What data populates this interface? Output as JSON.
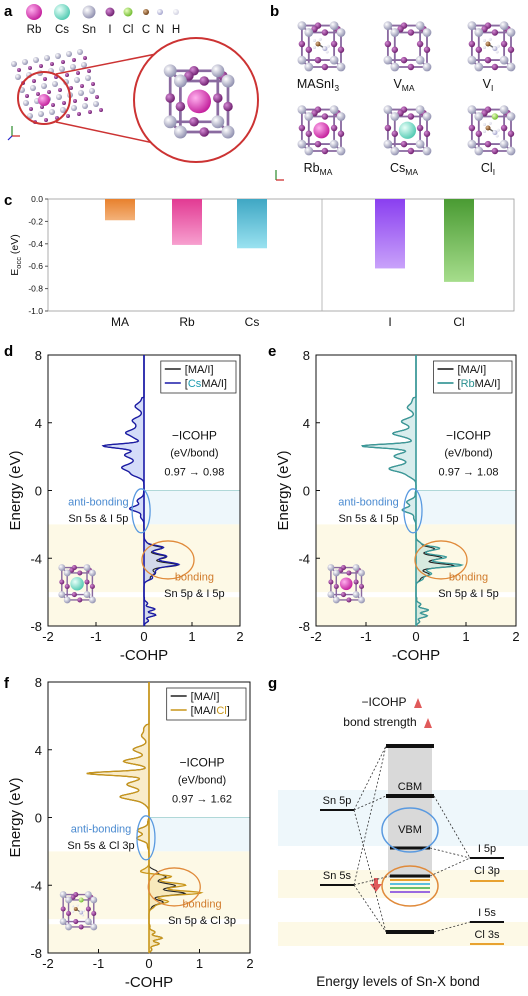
{
  "panels": {
    "a": "a",
    "b": "b",
    "c": "c",
    "d": "d",
    "e": "e",
    "f": "f",
    "g": "g"
  },
  "legend_atoms": [
    {
      "label": "Rb",
      "color": "#d63fb0",
      "size": "large"
    },
    {
      "label": "Cs",
      "color": "#7fe0cf",
      "size": "large"
    },
    {
      "label": "Sn",
      "color": "#9f9fbf",
      "size": "medium"
    },
    {
      "label": "I",
      "color": "#8a2a8a",
      "size": "small"
    },
    {
      "label": "Cl",
      "color": "#9ddc4a",
      "size": "small"
    },
    {
      "label": "C",
      "color": "#8a5a2a",
      "size": "tiny"
    },
    {
      "label": "N",
      "color": "#c9c9e6",
      "size": "tiny"
    },
    {
      "label": "H",
      "color": "#e9e9f2",
      "size": "tiny"
    }
  ],
  "structures": [
    {
      "label": "MASnI",
      "sub": "3",
      "sub_kind": "sub",
      "dopant": "ma"
    },
    {
      "label": "V",
      "sub": "MA",
      "sub_kind": "sub",
      "dopant": "none"
    },
    {
      "label": "V",
      "sub": "I",
      "sub_kind": "sub",
      "dopant": "ma"
    },
    {
      "label": "Rb",
      "sub": "MA",
      "sub_kind": "sub",
      "dopant": "rb"
    },
    {
      "label": "Cs",
      "sub": "MA",
      "sub_kind": "sub",
      "dopant": "cs"
    },
    {
      "label": "Cl",
      "sub": "I",
      "sub_kind": "sub",
      "dopant": "cl"
    }
  ],
  "chart_data": [
    {
      "panel": "c",
      "type": "bar",
      "ylabel_main": "E",
      "ylabel_sub": "occ",
      "ylabel_unit": " (eV)",
      "ylim": [
        -1.0,
        0.0
      ],
      "yticks": [
        "0.0",
        "-0.2",
        "-0.4",
        "-0.6",
        "-0.8",
        "-1.0"
      ],
      "ytick_values": [
        0.0,
        -0.2,
        -0.4,
        -0.6,
        -0.8,
        -1.0
      ],
      "categories": [
        "MA",
        "Rb",
        "Cs",
        "I",
        "Cl"
      ],
      "values": [
        -0.19,
        -0.41,
        -0.44,
        -0.62,
        -0.74
      ],
      "colors": [
        [
          "#f3b27a",
          "#e8812d"
        ],
        [
          "#f7a0cf",
          "#e23a93"
        ],
        [
          "#9ae2f0",
          "#3fa7c4"
        ],
        [
          "#c9a2fa",
          "#8a3ff0"
        ],
        [
          "#a6dd8c",
          "#4a9b33"
        ]
      ],
      "divider_after_index": 2
    },
    {
      "panel": "d",
      "type": "line",
      "xlabel": "-COHP",
      "ylabel": "Energy (eV)",
      "xlim": [
        -2,
        2
      ],
      "ylim": [
        -8,
        8
      ],
      "xticks": [
        "-2",
        "-1",
        "0",
        "1",
        "2"
      ],
      "xtick_values": [
        -2,
        -1,
        0,
        1,
        2
      ],
      "yticks": [
        "8",
        "4",
        "0",
        "-4",
        "-8"
      ],
      "ytick_values": [
        8,
        4,
        0,
        -4,
        -8
      ],
      "legend": [
        {
          "label": "[MA/I]",
          "color": "#222222"
        },
        {
          "label": "[",
          "hl": "Cs",
          "rest": "MA/I]",
          "color": "#1a1aa8",
          "hl_color": "#1a9bb0"
        }
      ],
      "icohp_title": "−ICOHP",
      "icohp_unit": "(eV/bond)",
      "icohp_change": "0.97 → 0.98",
      "antibonding_label": "anti-bonding",
      "antibonding_orbitals": "Sn 5s & I 5p",
      "bonding_label": "bonding",
      "bonding_orbitals": "Sn 5p & I 5p",
      "dopant": "cs",
      "series_color": "#1a1aa8",
      "fill_color": "#9fb1f2"
    },
    {
      "panel": "e",
      "type": "line",
      "xlabel": "-COHP",
      "ylabel": "Energy (eV)",
      "xlim": [
        -2,
        2
      ],
      "ylim": [
        -8,
        8
      ],
      "xticks": [
        "-2",
        "-1",
        "0",
        "1",
        "2"
      ],
      "xtick_values": [
        -2,
        -1,
        0,
        1,
        2
      ],
      "yticks": [
        "8",
        "4",
        "0",
        "-4",
        "-8"
      ],
      "ytick_values": [
        8,
        4,
        0,
        -4,
        -8
      ],
      "legend": [
        {
          "label": "[MA/I]",
          "color": "#222222"
        },
        {
          "label": "[",
          "hl": "Rb",
          "rest": "MA/I]",
          "color": "#2a8f8f",
          "hl_color": "#2a8f8f"
        }
      ],
      "icohp_title": "−ICOHP",
      "icohp_unit": "(eV/bond)",
      "icohp_change": "0.97 → 1.08",
      "antibonding_label": "anti-bonding",
      "antibonding_orbitals": "Sn 5s & I 5p",
      "bonding_label": "bonding",
      "bonding_orbitals": "Sn 5p & I 5p",
      "dopant": "rb",
      "series_color": "#3a9a9a",
      "fill_color": "#a8d8d8"
    },
    {
      "panel": "f",
      "type": "line",
      "xlabel": "-COHP",
      "ylabel": "Energy (eV)",
      "xlim": [
        -2,
        2
      ],
      "ylim": [
        -8,
        8
      ],
      "xticks": [
        "-2",
        "-1",
        "0",
        "1",
        "2"
      ],
      "xtick_values": [
        -2,
        -1,
        0,
        1,
        2
      ],
      "yticks": [
        "8",
        "4",
        "0",
        "-4",
        "-8"
      ],
      "ytick_values": [
        8,
        4,
        0,
        -4,
        -8
      ],
      "legend": [
        {
          "label": "[MA/I]",
          "color": "#222222"
        },
        {
          "label": "[MA/I",
          "hl": "Cl",
          "rest": "]",
          "color": "#c9961a",
          "hl_color": "#c9961a"
        }
      ],
      "icohp_title": "−ICOHP",
      "icohp_unit": "(eV/bond)",
      "icohp_change": "0.97 → 1.62",
      "antibonding_label": "anti-bonding",
      "antibonding_orbitals": "Sn 5s & Cl 3p",
      "bonding_label": "bonding",
      "bonding_orbitals": "Sn 5p & Cl 3p",
      "dopant": "cl",
      "series_color": "#c9961a",
      "fill_color": "#f2d58a"
    }
  ],
  "energy_diagram": {
    "icohp_line": "−ICOHP",
    "strength_line": "bond strength",
    "cbm": "CBM",
    "vbm": "VBM",
    "sn5p": "Sn 5p",
    "sn5s": "Sn 5s",
    "i5p": "I 5p",
    "cl3p": "Cl 3p",
    "i5s": "I 5s",
    "cl3s": "Cl 3s",
    "caption": "Energy levels of Sn-X bond",
    "arrow_color": "#e05a5a",
    "ellipse_vbm_color": "#5a9ae0",
    "ellipse_bond_color": "#e08a3a",
    "halogen_s_color": "#e8a230"
  }
}
